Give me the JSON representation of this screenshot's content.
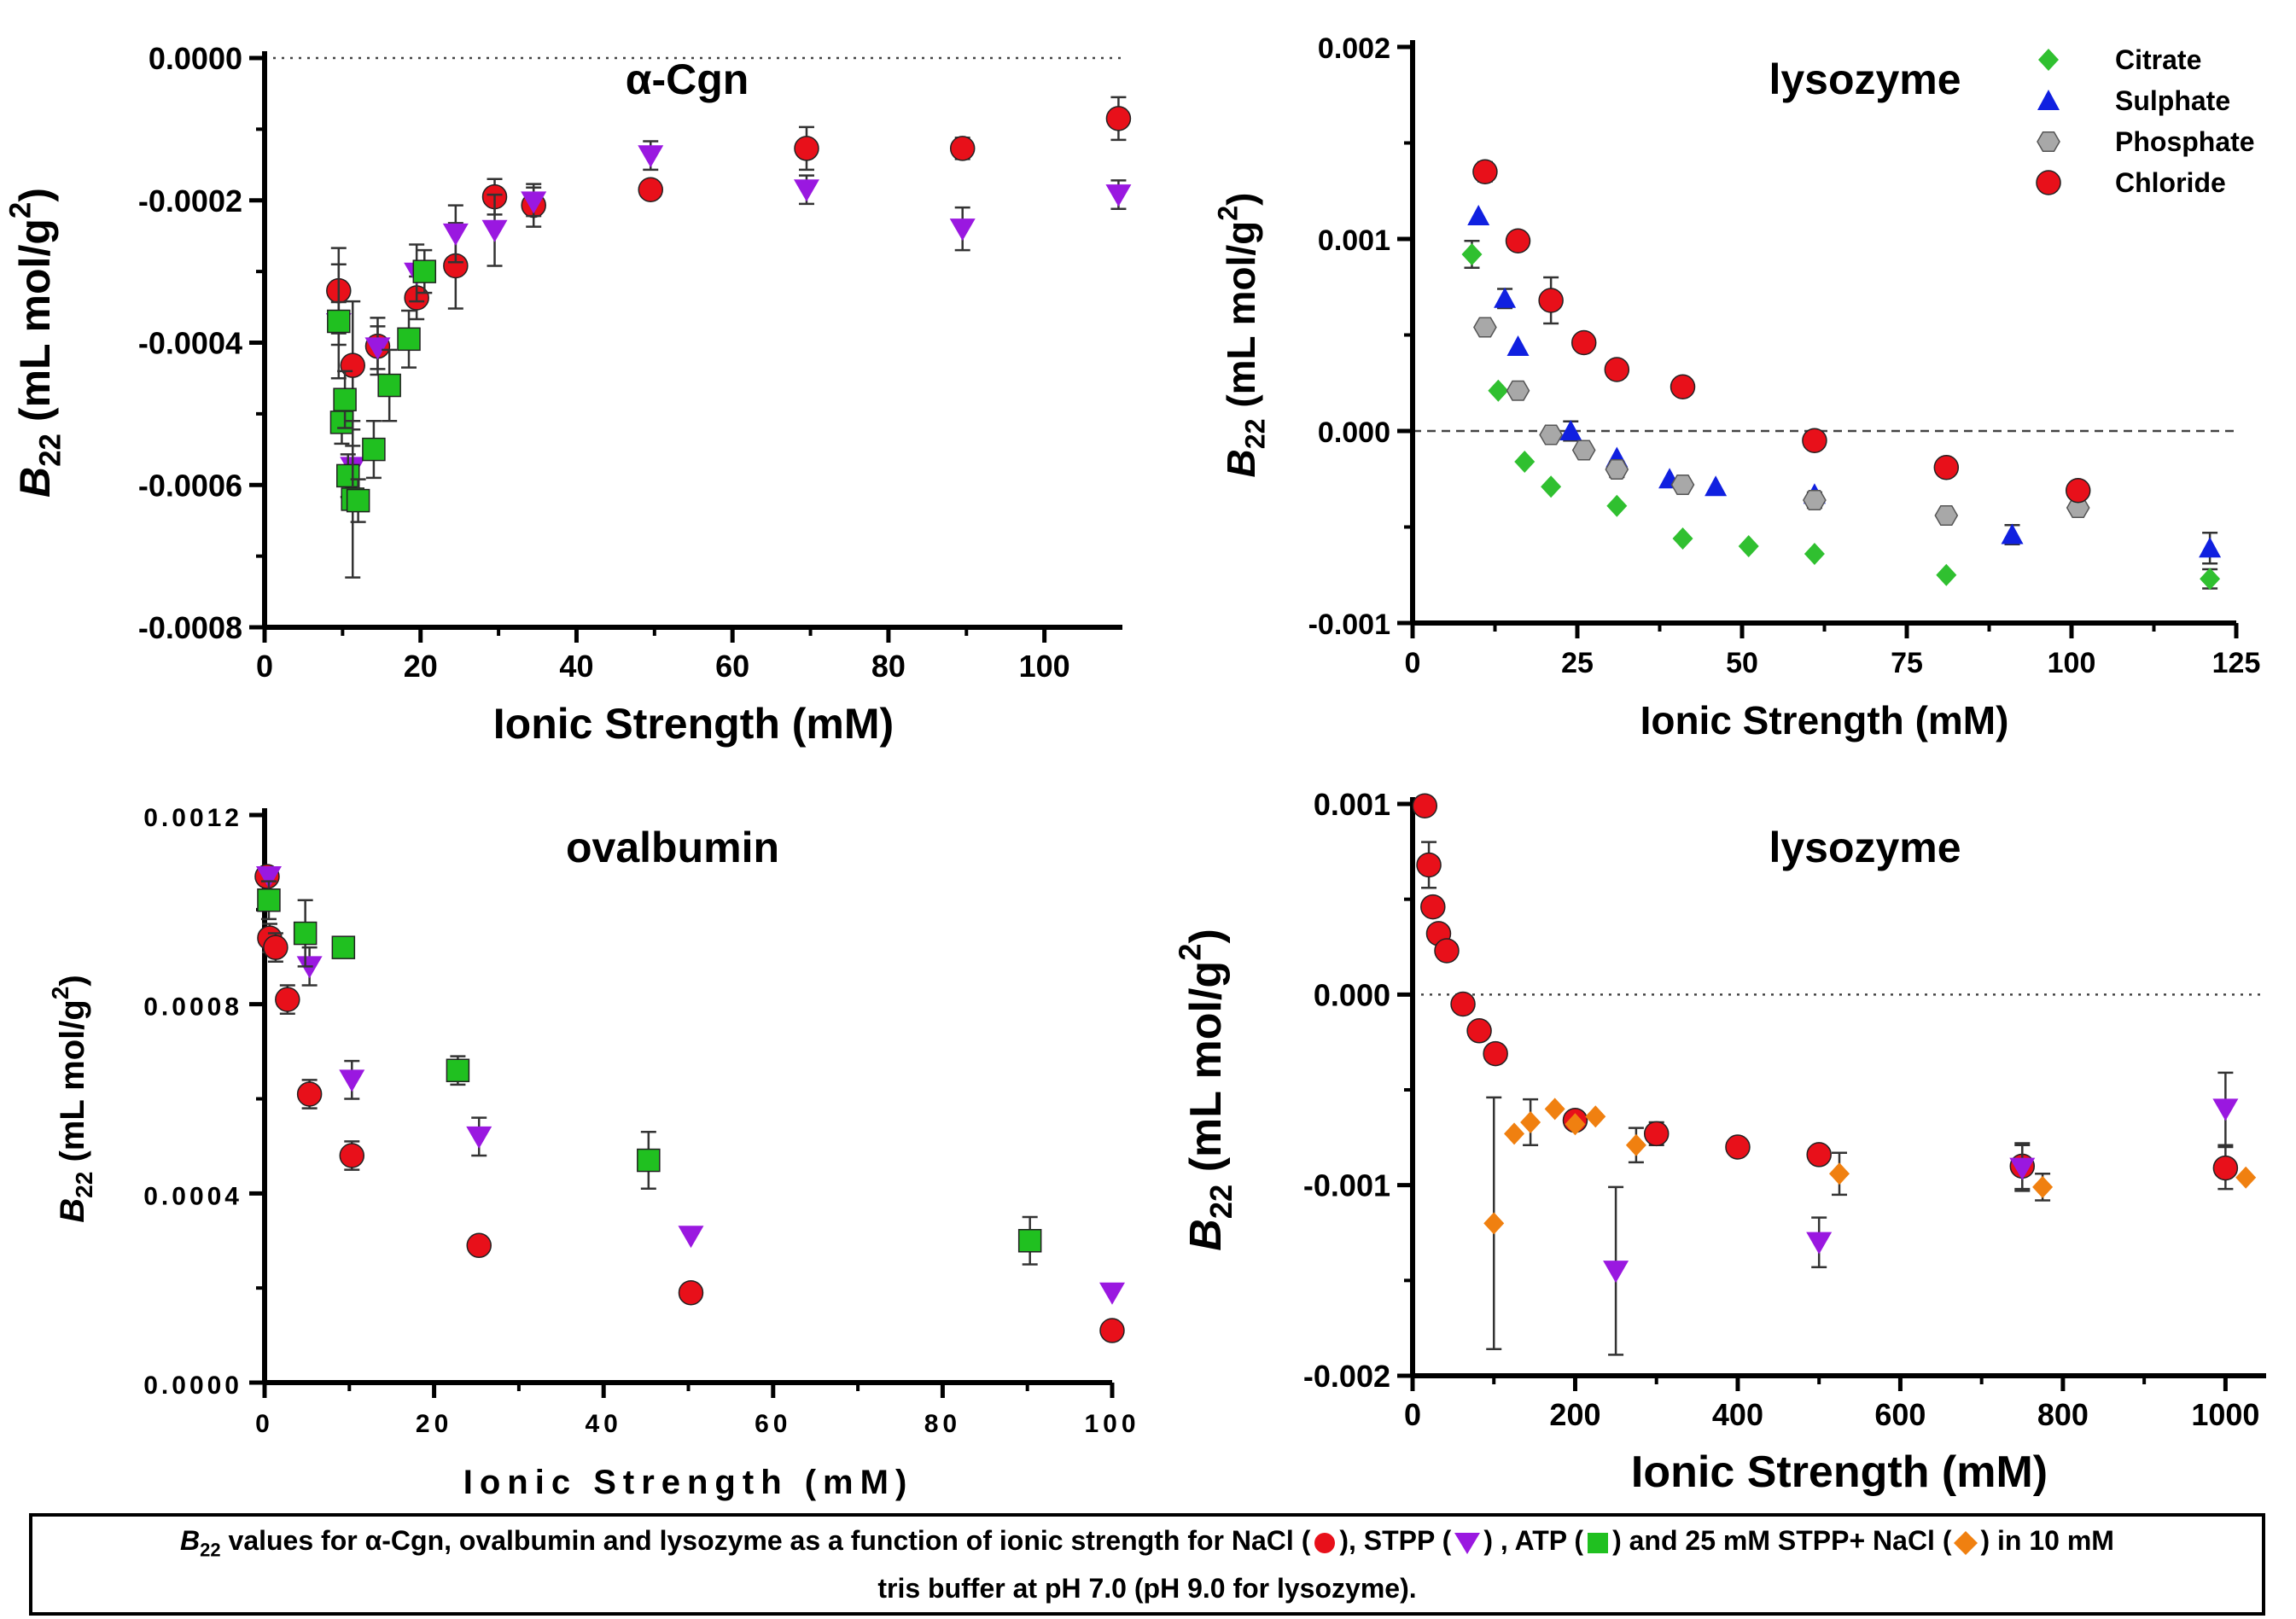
{
  "caption": {
    "b22": "B",
    "b22_sub": "22",
    "part1": " values for α-Cgn, ovalbumin and lysozyme as a function of ionic strength for NaCl (",
    "part2": "), STPP (",
    "part3": ") , ATP (",
    "part4": ")  and 25 mM STPP+ NaCl (",
    "part5": ") in 10 mM",
    "line2": "tris buffer at pH 7.0 (pH 9.0 for lysozyme)."
  },
  "colors": {
    "nacl": "#e8101a",
    "stpp": "#9a18e0",
    "atp": "#20c020",
    "stpp_nacl": "#f08010",
    "citrate": "#30c030",
    "sulphate": "#1020e0",
    "phosphate": "#a8a8a8",
    "chloride": "#e8101a"
  },
  "chart_data": [
    {
      "id": "acgn",
      "type": "scatter",
      "title": "α-Cgn",
      "xlabel": "Ionic Strength (mM)",
      "ylabel": "B22 (mL mol/g2)",
      "xlim": [
        0,
        110
      ],
      "ylim": [
        -0.0008,
        0.0
      ],
      "xticks": [
        "0",
        "20",
        "40",
        "60",
        "80",
        "100"
      ],
      "xtick_values": [
        0,
        20,
        40,
        60,
        80,
        100
      ],
      "yticks": [
        "0.0000",
        "-0.0002",
        "-0.0004",
        "-0.0006",
        "-0.0008"
      ],
      "ytick_values": [
        0.0,
        -0.0002,
        -0.0004,
        -0.0006,
        -0.0008
      ],
      "zero_line": "dotted",
      "series": [
        {
          "key": "nacl",
          "marker": "circle",
          "x": [
            9.5,
            11.3,
            14.5,
            19.5,
            24.5,
            29.5,
            34.5,
            49.5,
            69.5,
            89.5,
            109.5
          ],
          "y": [
            -0.000327,
            -0.000432,
            -0.000405,
            -0.000337,
            -0.000292,
            -0.000195,
            -0.000207,
            -0.000185,
            -0.000127,
            -0.000127,
            -8.5e-05
          ],
          "err": [
            6e-05,
            9e-05,
            4e-05,
            3e-05,
            6e-05,
            2.5e-05,
            3e-05,
            1e-05,
            3e-05,
            1.5e-05,
            3e-05
          ]
        },
        {
          "key": "stpp",
          "marker": "triangle-down",
          "x": [
            9.5,
            11.3,
            14.5,
            19.5,
            24.5,
            29.5,
            34.5,
            49.5,
            69.5,
            89.5,
            109.5
          ],
          "y": [
            -0.000373,
            -0.000575,
            -0.000407,
            -0.000302,
            -0.000247,
            -0.000242,
            -0.000202,
            -0.000137,
            -0.000185,
            -0.00024,
            -0.000192
          ],
          "err": [
            3e-05,
            3e-05,
            3e-05,
            4e-05,
            4e-05,
            5e-05,
            2e-05,
            2e-05,
            2e-05,
            3e-05,
            2e-05
          ]
        },
        {
          "key": "atp",
          "marker": "square",
          "x": [
            9.5,
            9.9,
            10.3,
            10.7,
            11.3,
            12.0,
            14.0,
            16.0,
            18.5,
            20.5
          ],
          "y": [
            -0.00037,
            -0.000512,
            -0.00048,
            -0.000587,
            -0.00062,
            -0.000622,
            -0.00055,
            -0.00046,
            -0.000395,
            -0.0003
          ],
          "err": [
            8e-05,
            3e-05,
            4e-05,
            3e-05,
            0.00011,
            3e-05,
            4e-05,
            5e-05,
            4e-05,
            3e-05
          ]
        }
      ]
    },
    {
      "id": "lyso1",
      "type": "scatter",
      "title": "lysozyme",
      "xlabel": "Ionic Strength (mM)",
      "ylabel": "B22 (mL mol/g2)",
      "xlim": [
        0,
        125
      ],
      "ylim": [
        -0.001,
        0.002
      ],
      "xticks": [
        "0",
        "25",
        "50",
        "75",
        "100",
        "125"
      ],
      "xtick_values": [
        0,
        25,
        50,
        75,
        100,
        125
      ],
      "yticks": [
        "0.002",
        "0.001",
        "0.000",
        "-0.001"
      ],
      "ytick_values": [
        0.002,
        0.001,
        0.0,
        -0.001
      ],
      "zero_line": "dashed",
      "legend": [
        "Citrate",
        "Sulphate",
        "Phosphate",
        "Chloride"
      ],
      "legend_position": "top-right",
      "series": [
        {
          "key": "citrate",
          "name": "Citrate",
          "marker": "diamond",
          "x": [
            9,
            13,
            17,
            21,
            31,
            41,
            51,
            61,
            81,
            121
          ],
          "y": [
            0.00092,
            0.00021,
            -0.00016,
            -0.00029,
            -0.00039,
            -0.00056,
            -0.0006,
            -0.00064,
            -0.00075,
            -0.00077
          ],
          "err": [
            7e-05,
            0,
            0,
            0,
            0,
            0,
            0,
            0,
            0,
            5e-05
          ]
        },
        {
          "key": "sulphate",
          "name": "Sulphate",
          "marker": "triangle-up",
          "x": [
            10,
            14,
            16,
            24,
            31,
            39,
            46,
            61,
            91,
            121
          ],
          "y": [
            0.00112,
            0.00069,
            0.00044,
            0.0,
            -0.00014,
            -0.00025,
            -0.00029,
            -0.00033,
            -0.00054,
            -0.00061
          ],
          "err": [
            0,
            5e-05,
            0,
            5e-05,
            0,
            0,
            0,
            0,
            5e-05,
            8e-05
          ]
        },
        {
          "key": "phosphate",
          "name": "Phosphate",
          "marker": "hexagon",
          "x": [
            11,
            16,
            21,
            26,
            31,
            41,
            61,
            81,
            101
          ],
          "y": [
            0.00054,
            0.00021,
            -2e-05,
            -0.0001,
            -0.0002,
            -0.00028,
            -0.00036,
            -0.00044,
            -0.0004
          ],
          "err": [
            0,
            0,
            0,
            0,
            4e-05,
            0,
            4e-05,
            0,
            3e-05
          ]
        },
        {
          "key": "chloride",
          "name": "Chloride",
          "marker": "circle",
          "x": [
            11,
            16,
            21,
            26,
            31,
            41,
            61,
            81,
            101
          ],
          "y": [
            0.00135,
            0.00099,
            0.00068,
            0.00046,
            0.00032,
            0.00023,
            -5e-05,
            -0.00019,
            -0.00031
          ],
          "err": [
            5e-05,
            0,
            0.00012,
            0,
            0,
            0,
            0,
            0,
            0
          ]
        }
      ]
    },
    {
      "id": "oval",
      "type": "scatter",
      "title": "ovalbumin",
      "xlabel": "Ionic Strength (mM)",
      "ylabel": "B22 (mL mol/g2)",
      "xlim": [
        0,
        100
      ],
      "ylim": [
        0.0,
        0.0012
      ],
      "xticks": [
        "0",
        "20",
        "40",
        "60",
        "80",
        "100"
      ],
      "xtick_values": [
        0,
        20,
        40,
        60,
        80,
        100
      ],
      "yticks": [
        "0.0012",
        "0.0008",
        "0.0004",
        "0.0000"
      ],
      "ytick_values": [
        0.0012,
        0.0008,
        0.0004,
        0.0
      ],
      "series": [
        {
          "key": "nacl",
          "marker": "circle",
          "x": [
            0.3,
            0.6,
            1.3,
            2.7,
            5.3,
            10.3,
            25.3,
            50.3,
            100
          ],
          "y": [
            0.00107,
            0.00094,
            0.00092,
            0.00081,
            0.00061,
            0.00048,
            0.00029,
            0.00019,
            0.00011
          ],
          "err": [
            0,
            3e-05,
            3e-05,
            3e-05,
            3e-05,
            3e-05,
            0,
            0,
            0
          ]
        },
        {
          "key": "stpp",
          "marker": "triangle-down",
          "x": [
            0.5,
            5.3,
            10.3,
            25.3,
            50.3,
            100
          ],
          "y": [
            0.00107,
            0.00088,
            0.00064,
            0.00052,
            0.00031,
            0.00019
          ],
          "err": [
            0,
            4e-05,
            4e-05,
            4e-05,
            0,
            0
          ]
        },
        {
          "key": "atp",
          "marker": "square",
          "x": [
            0.5,
            4.8,
            9.3,
            22.8,
            45.3,
            90.3
          ],
          "y": [
            0.00102,
            0.00095,
            0.00092,
            0.00066,
            0.00047,
            0.0003
          ],
          "err": [
            4e-05,
            7e-05,
            2e-05,
            3e-05,
            6e-05,
            5e-05
          ]
        }
      ]
    },
    {
      "id": "lyso2",
      "type": "scatter",
      "title": "lysozyme",
      "xlabel": "Ionic Strength (mM)",
      "ylabel": "B22 (mL mol/g2)",
      "xlim": [
        0,
        1050
      ],
      "ylim": [
        -0.002,
        0.001
      ],
      "xticks": [
        "0",
        "200",
        "400",
        "600",
        "800",
        "1000"
      ],
      "xtick_values": [
        0,
        200,
        400,
        600,
        800,
        1000
      ],
      "yticks": [
        "0.001",
        "0.000",
        "-0.001",
        "-0.002"
      ],
      "ytick_values": [
        0.001,
        0.0,
        -0.001,
        -0.002
      ],
      "zero_line": "dotted",
      "series": [
        {
          "key": "nacl",
          "marker": "circle",
          "x": [
            15,
            20,
            25,
            32,
            42,
            62,
            82,
            102,
            200,
            300,
            400,
            500,
            750,
            1000
          ],
          "y": [
            0.00099,
            0.00068,
            0.00046,
            0.00032,
            0.00023,
            -5e-05,
            -0.00019,
            -0.00031,
            -0.00066,
            -0.00073,
            -0.0008,
            -0.00084,
            -0.0009,
            -0.00091
          ],
          "err": [
            0,
            0.00012,
            0,
            0,
            0,
            0,
            0,
            0,
            0,
            6e-05,
            0,
            4e-05,
            0.00012,
            0.00011
          ]
        },
        {
          "key": "stpp",
          "marker": "triangle-down",
          "x": [
            250,
            500,
            750,
            1000
          ],
          "y": [
            -0.00145,
            -0.0013,
            -0.00091,
            -0.0006
          ],
          "err": [
            0.00044,
            0.00013,
            0.00012,
            0.00019
          ]
        },
        {
          "key": "stpp_nacl",
          "marker": "diamond",
          "x": [
            100,
            125,
            145,
            175,
            200,
            225,
            275,
            525,
            775,
            1025
          ],
          "y": [
            -0.0012,
            -0.00073,
            -0.00067,
            -0.0006,
            -0.00068,
            -0.00064,
            -0.00079,
            -0.00094,
            -0.00101,
            -0.00096
          ],
          "err": [
            0.00066,
            0,
            0.00012,
            0,
            0,
            0,
            9e-05,
            0.00011,
            7e-05,
            0
          ]
        }
      ]
    }
  ]
}
